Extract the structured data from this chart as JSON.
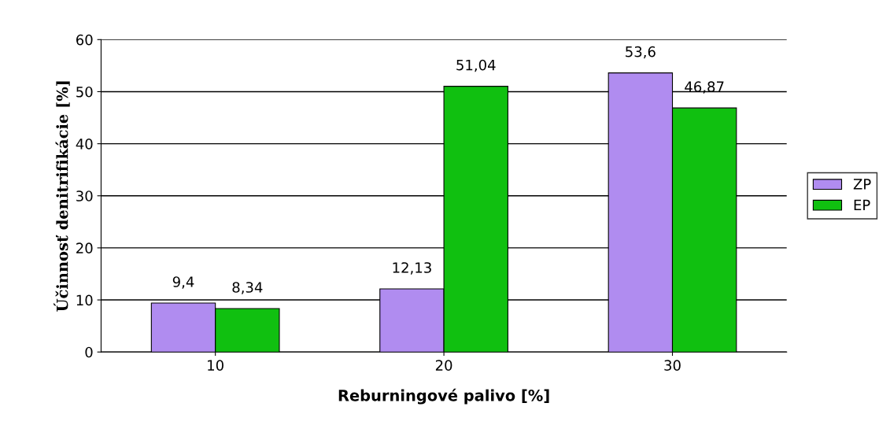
{
  "chart_data": {
    "type": "bar",
    "xlabel": "Reburningové palivo [%]",
    "ylabel": "Účinnosť denitrifikácie [%]",
    "categories": [
      "10",
      "20",
      "30"
    ],
    "series": [
      {
        "name": "ZP",
        "color": "#b08cf0",
        "values": [
          9.4,
          12.13,
          53.6
        ],
        "value_labels": [
          "9,4",
          "12,13",
          "53,6"
        ]
      },
      {
        "name": "EP",
        "color": "#10c010",
        "values": [
          8.34,
          51.04,
          46.87
        ],
        "value_labels": [
          "8,34",
          "51,04",
          "46,87"
        ]
      }
    ],
    "ylim": [
      0,
      60
    ],
    "yticks": [
      0,
      10,
      20,
      30,
      40,
      50,
      60
    ],
    "grid": "y",
    "legend": "right"
  }
}
